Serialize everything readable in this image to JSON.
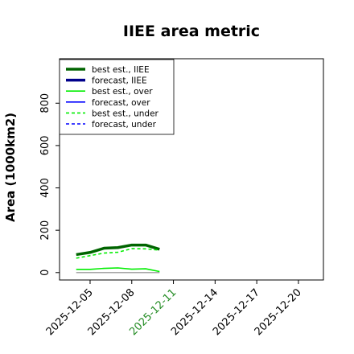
{
  "chart_data": {
    "type": "line",
    "title": "IIEE area metric",
    "ylabel": "Area (1000km2)",
    "xlabel": "",
    "ylim": [
      -35,
      1010
    ],
    "y_ticks": [
      0,
      200,
      400,
      600,
      800
    ],
    "x_ticks": [
      {
        "label": "2025-12-05",
        "day": 5,
        "color": "#000000"
      },
      {
        "label": "2025-12-08",
        "day": 8,
        "color": "#000000"
      },
      {
        "label": "2025-12-11",
        "day": 11,
        "color": "#228b22"
      },
      {
        "label": "2025-12-14",
        "day": 14,
        "color": "#000000"
      },
      {
        "label": "2025-12-17",
        "day": 17,
        "color": "#000000"
      },
      {
        "label": "2025-12-20",
        "day": 20,
        "color": "#000000"
      }
    ],
    "xlim_day": [
      2.8,
      21.8
    ],
    "grid": false,
    "legend_position": "top-left",
    "series": [
      {
        "name": "best est., IIEE",
        "color": "#006400",
        "dash": "solid",
        "width": 3.5,
        "x": [
          "2025-12-04",
          "2025-12-05",
          "2025-12-06",
          "2025-12-07",
          "2025-12-08",
          "2025-12-09",
          "2025-12-10"
        ],
        "y": [
          85,
          95,
          115,
          118,
          130,
          130,
          110
        ]
      },
      {
        "name": "forecast, IIEE",
        "color": "#00008b",
        "dash": "solid",
        "width": 3.5,
        "x": [],
        "y": []
      },
      {
        "name": "best est., over",
        "color": "#00ee00",
        "dash": "solid",
        "width": 1.6,
        "x": [
          "2025-12-04",
          "2025-12-05",
          "2025-12-06",
          "2025-12-07",
          "2025-12-08",
          "2025-12-09",
          "2025-12-10"
        ],
        "y": [
          15,
          15,
          20,
          22,
          16,
          18,
          5
        ]
      },
      {
        "name": "forecast, over",
        "color": "#0000ff",
        "dash": "solid",
        "width": 1.6,
        "x": [],
        "y": []
      },
      {
        "name": "best est., under",
        "color": "#00ee00",
        "dash": "dashed",
        "width": 1.6,
        "x": [
          "2025-12-04",
          "2025-12-05",
          "2025-12-06",
          "2025-12-07",
          "2025-12-08",
          "2025-12-09",
          "2025-12-10"
        ],
        "y": [
          68,
          80,
          92,
          96,
          113,
          112,
          106
        ]
      },
      {
        "name": "forecast, under",
        "color": "#0000ff",
        "dash": "dashed",
        "width": 1.6,
        "x": [],
        "y": []
      }
    ],
    "zero_line": {
      "color": "#888888",
      "x": [
        "2025-12-04",
        "2025-12-10"
      ],
      "y": [
        0,
        0
      ]
    }
  }
}
